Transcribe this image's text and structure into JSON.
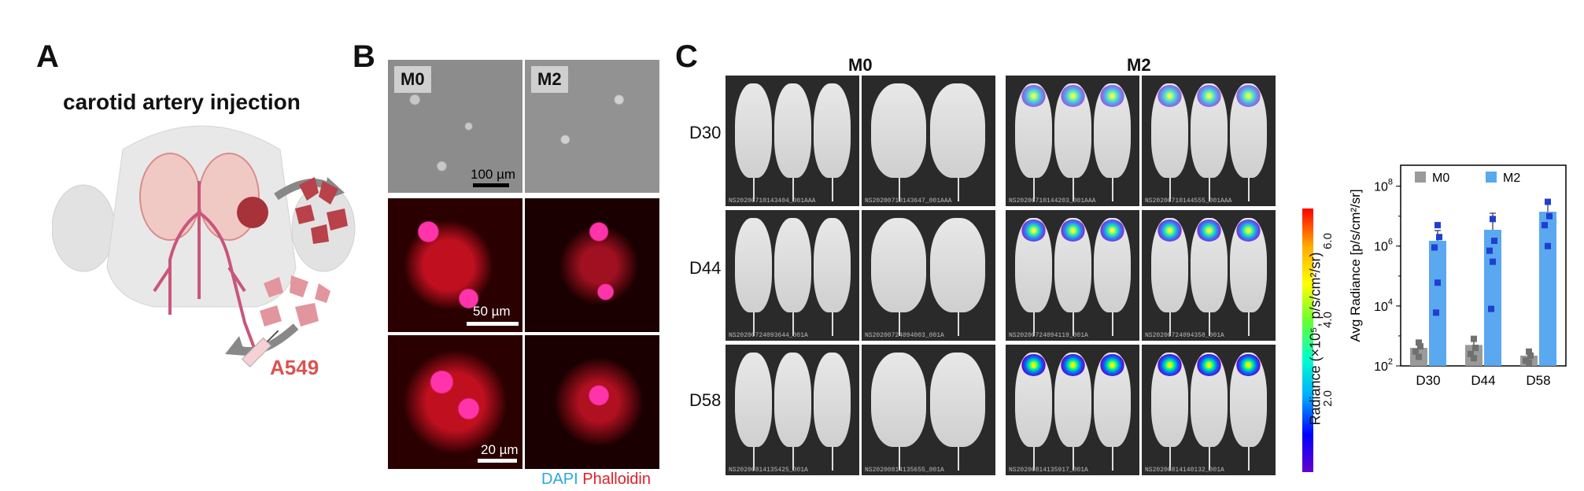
{
  "panel_a": {
    "label": "A",
    "title": "carotid artery injection",
    "cell_label": "A549"
  },
  "panel_b": {
    "label": "B",
    "col_labels": [
      "M0",
      "M2"
    ],
    "scale_bars": [
      "100 µm",
      "50 µm",
      "20 µm"
    ],
    "legend_dapi": "DAPI",
    "legend_phalloidin": "Phalloidin",
    "colors": {
      "dapi": "#2aa7e0",
      "phalloidin": "#e0202a"
    }
  },
  "panel_c": {
    "label": "C",
    "groups": [
      "M0",
      "M2"
    ],
    "rows": [
      "D30",
      "D44",
      "D58"
    ],
    "captions": [
      [
        "NS20200710143404_001AAA",
        "NS20200710143647_001AAA",
        "NS20200710144203_001AAA",
        "NS20200710144555_001AAA"
      ],
      [
        "NS20200724093644_001A",
        "NS20200724094003_001A",
        "NS20200724094119_001A",
        "NS20200724094358_001A"
      ],
      [
        "NS20200814135425_001A",
        "NS20200814135655_001A",
        "NS20200814135917_001A",
        "NS20200814140132_001A"
      ]
    ],
    "colorbar": {
      "title": "Radiance (×10⁵, p/s/cm²/sr)",
      "ticks": [
        "6.0",
        "4.0",
        "2.0"
      ],
      "gradient": [
        "#ff0000",
        "#ffaa00",
        "#ffff00",
        "#66ff33",
        "#00ffcc",
        "#00aaff",
        "#0000ff",
        "#6600cc"
      ]
    }
  },
  "chart_data": {
    "type": "bar",
    "categories": [
      "D30",
      "D44",
      "D58"
    ],
    "ylabel": "Avg Radiance [p/s/cm²/sr]",
    "yscale": "log",
    "ylim": [
      100,
      500000000
    ],
    "yticks": [
      {
        "value": 100,
        "base": "10",
        "exp": "2"
      },
      {
        "value": 10000,
        "base": "10",
        "exp": "4"
      },
      {
        "value": 1000000,
        "base": "10",
        "exp": "6"
      },
      {
        "value": 100000000,
        "base": "10",
        "exp": "8"
      }
    ],
    "legend_position": "top",
    "series": [
      {
        "name": "M0",
        "color": "#9a9a9a",
        "point_color": "#707070",
        "values": [
          400,
          500,
          220
        ],
        "errors": [
          160,
          300,
          60
        ],
        "points": [
          [
            600,
            450,
            300,
            200
          ],
          [
            800,
            400,
            250,
            180
          ],
          [
            300,
            220,
            150,
            130
          ]
        ]
      },
      {
        "name": "M2",
        "color": "#5aa8f0",
        "point_color": "#1f3fd0",
        "values": [
          1500000,
          3500000,
          14000000
        ],
        "errors": [
          1800000,
          9000000,
          20000000
        ],
        "points": [
          [
            5000000,
            2000000,
            900000,
            60000,
            6000
          ],
          [
            8000000,
            1500000,
            700000,
            300000,
            8000
          ],
          [
            30000000,
            10000000,
            5000000,
            1000000
          ]
        ]
      }
    ]
  }
}
